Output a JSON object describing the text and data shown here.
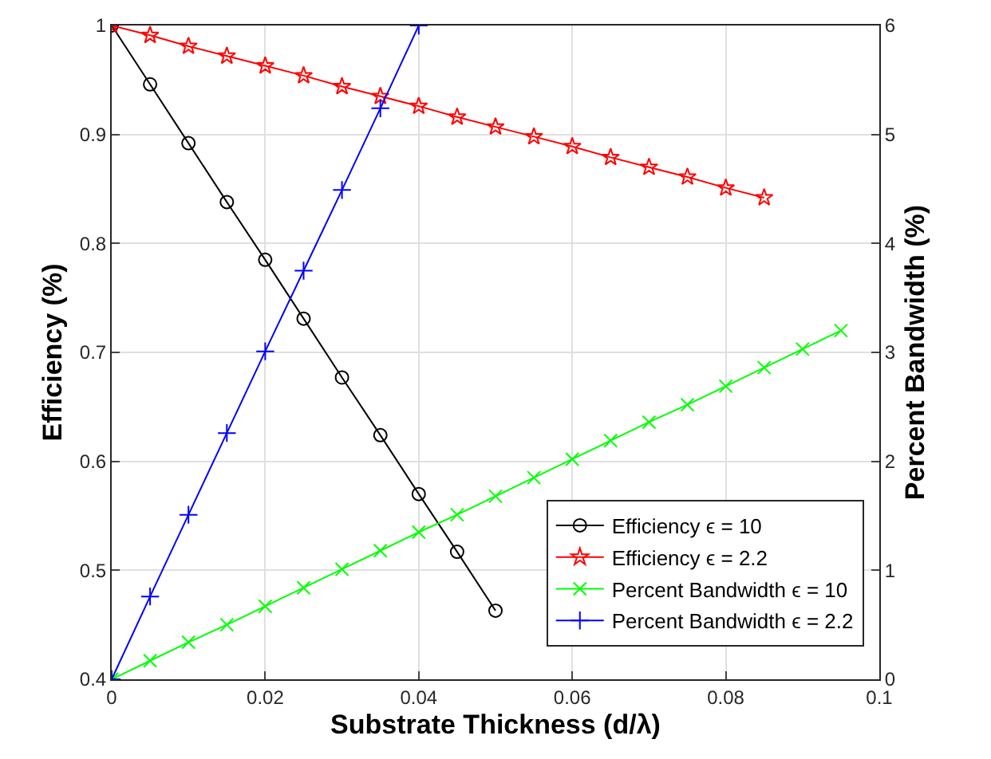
{
  "chart_data": {
    "type": "line",
    "xlabel": "Substrate Thickness (d/λ)",
    "ylabel": "Efficiency (%)",
    "y2label": "Percent Bandwidth (%)",
    "xlim": [
      0,
      0.1
    ],
    "xticks": [
      0,
      0.02,
      0.04,
      0.06,
      0.08,
      0.1
    ],
    "ylim": [
      0.4,
      1
    ],
    "yticks": [
      0.4,
      0.5,
      0.6,
      0.7,
      0.8,
      0.9,
      1
    ],
    "y2lim": [
      0,
      6
    ],
    "y2ticks": [
      0,
      1,
      2,
      3,
      4,
      5,
      6
    ],
    "grid": true,
    "legend": "bottom right",
    "line_style": "solid",
    "series": [
      {
        "name": "Efficiency ϵ = 10",
        "color": "#000000",
        "marker": "circle",
        "x": [
          0,
          0.005,
          0.01,
          0.015,
          0.02,
          0.025,
          0.03,
          0.035,
          0.04,
          0.045,
          0.05
        ],
        "values": [
          1,
          0.946,
          0.892,
          0.838,
          0.785,
          0.731,
          0.677,
          0.624,
          0.57,
          0.517,
          0.463
        ]
      },
      {
        "name": "Efficiency ϵ = 2.2",
        "color": "#ff0000",
        "marker": "star",
        "x": [
          0,
          0.005,
          0.01,
          0.015,
          0.02,
          0.025,
          0.03,
          0.035,
          0.04,
          0.045,
          0.05,
          0.055,
          0.06,
          0.065,
          0.07,
          0.075,
          0.08,
          0.085
        ],
        "values": [
          1,
          0.991,
          0.981,
          0.972,
          0.963,
          0.954,
          0.944,
          0.935,
          0.926,
          0.916,
          0.907,
          0.898,
          0.889,
          0.879,
          0.87,
          0.861,
          0.851,
          0.842
        ]
      },
      {
        "name": "Percent Bandwidth ϵ = 10",
        "color": "#00ff00",
        "marker": "x",
        "axis": "y2",
        "x": [
          0,
          0.005,
          0.01,
          0.015,
          0.02,
          0.025,
          0.03,
          0.035,
          0.04,
          0.045,
          0.05,
          0.055,
          0.06,
          0.065,
          0.07,
          0.075,
          0.08,
          0.085,
          0.09,
          0.095
        ],
        "values": [
          0,
          0.17,
          0.34,
          0.5,
          0.67,
          0.84,
          1.01,
          1.18,
          1.35,
          1.51,
          1.68,
          1.85,
          2.02,
          2.19,
          2.36,
          2.52,
          2.69,
          2.86,
          3.03,
          3.2
        ]
      },
      {
        "name": "Percent Bandwidth ϵ = 2.2",
        "color": "#0000ff",
        "marker": "cross",
        "axis": "y2",
        "x": [
          0,
          0.005,
          0.01,
          0.015,
          0.02,
          0.025,
          0.03,
          0.035,
          0.04
        ],
        "values": [
          0,
          0.76,
          1.51,
          2.26,
          3.01,
          3.75,
          4.49,
          5.24,
          6
        ]
      }
    ]
  }
}
